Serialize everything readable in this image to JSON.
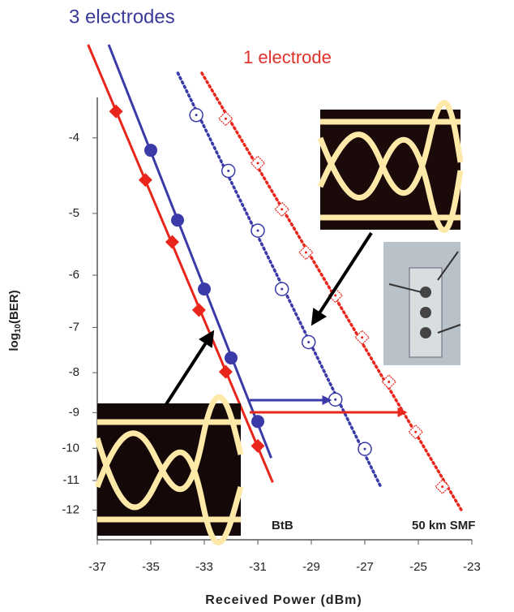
{
  "chart_data": {
    "type": "scatter",
    "yscale": "neglog",
    "xlim": [
      -37,
      -23
    ],
    "xticks": [
      -37,
      -35,
      -33,
      -31,
      -29,
      -27,
      -25,
      -23
    ],
    "ylim": [
      -3.55,
      -13.1
    ],
    "yticks": [
      -4,
      -5,
      -6,
      -7,
      -8,
      -9,
      -10,
      -11,
      -12
    ],
    "xlabel": "Received Power (dBm)",
    "ylabel": {
      "base": "log",
      "sub": "10",
      "rest": "(BER)"
    },
    "annotations": [
      {
        "text": "3 electrodes",
        "color": "#3a3a9a"
      },
      {
        "text": "1 electrode",
        "color": "#e0302a"
      },
      {
        "text": "BtB",
        "color": "#222222"
      },
      {
        "text": "50 km SMF",
        "color": "#222222"
      }
    ],
    "series": [
      {
        "color": "#3a3aa8",
        "marker": "filled-circle",
        "line": "solid",
        "x": [
          -35,
          -34,
          -33,
          -32,
          -31
        ],
        "values": [
          -4.15,
          -5.1,
          -6.25,
          -7.66,
          -9.24
        ]
      },
      {
        "color": "#e8261c",
        "marker": "filled-diamond",
        "line": "solid",
        "x": [
          -36.3,
          -35.2,
          -34.2,
          -33.2,
          -32.2,
          -31
        ],
        "values": [
          -3.7,
          -4.53,
          -5.44,
          -6.65,
          -7.98,
          -9.93
        ]
      },
      {
        "color": "#3a3aa8",
        "marker": "open-circle",
        "line": "dotted",
        "x": [
          -33.3,
          -32.1,
          -31,
          -30.1,
          -29.1,
          -28.1,
          -27
        ],
        "values": [
          -3.74,
          -4.41,
          -5.26,
          -6.25,
          -7.31,
          -8.66,
          -10.02
        ]
      },
      {
        "color": "#e8261c",
        "marker": "open-diamond",
        "line": "dotted",
        "x": [
          -32.2,
          -31,
          -30.1,
          -29.2,
          -28.1,
          -27.1,
          -26.1,
          -25.1,
          -24.1
        ],
        "values": [
          -3.78,
          -4.31,
          -4.94,
          -5.61,
          -6.37,
          -7.21,
          -8.22,
          -9.53,
          -11.2
        ]
      }
    ]
  }
}
